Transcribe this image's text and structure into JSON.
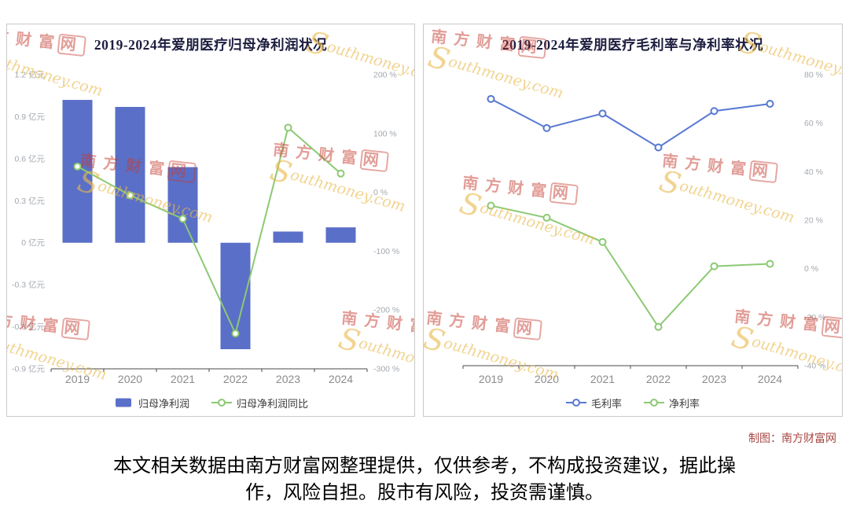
{
  "page": {
    "credit": "制图：南方财富网",
    "disclaimer": "本文相关数据由南方财富网整理提供，仅供参考，不构成投资建议，据此操作，风险自担。股市有风险，投资需谨慎。"
  },
  "watermark": {
    "cn": "南方财富网",
    "en_s": "S",
    "en_rest": "outhmoney.com"
  },
  "colors": {
    "bar_blue": "#5a6fc7",
    "line_green": "#8cc973",
    "line_blue": "#5778d2"
  },
  "chart_data": [
    {
      "type": "bar",
      "title": "2019-2024年爱朋医疗归母净利润状况",
      "categories": [
        "2019",
        "2020",
        "2021",
        "2022",
        "2023",
        "2024"
      ],
      "axes": {
        "left": {
          "min": -0.9,
          "max": 1.2,
          "ticks": [
            "1.2 亿元",
            "0.9 亿元",
            "0.6 亿元",
            "0.3 亿元",
            "0 亿元",
            "-0.3 亿元",
            "-0.6 亿元",
            "-0.9 亿元"
          ]
        },
        "right": {
          "min": -300,
          "max": 200,
          "ticks": [
            "200 %",
            "100 %",
            "0 %",
            "-100 %",
            "-200 %",
            "-300 %"
          ]
        }
      },
      "series": [
        {
          "name": "归母净利润",
          "kind": "bar",
          "axis": "left",
          "unit": "亿元",
          "color": "#5a6fc7",
          "values": [
            1.02,
            0.97,
            0.54,
            -0.76,
            0.08,
            0.11
          ]
        },
        {
          "name": "归母净利润同比",
          "kind": "line",
          "axis": "right",
          "unit": "%",
          "color": "#8cc973",
          "values": [
            44,
            -5,
            -45,
            -240,
            110,
            32
          ]
        }
      ],
      "legend_position": "bottom",
      "grid": false
    },
    {
      "type": "line",
      "title": "2019-2024年爱朋医疗毛利率与净利率状况",
      "categories": [
        "2019",
        "2020",
        "2021",
        "2022",
        "2023",
        "2024"
      ],
      "axes": {
        "right": {
          "min": -40,
          "max": 80,
          "ticks": [
            "80 %",
            "60 %",
            "40 %",
            "20 %",
            "0 %",
            "-20 %",
            "-40 %"
          ]
        }
      },
      "series": [
        {
          "name": "毛利率",
          "kind": "line",
          "axis": "right",
          "unit": "%",
          "color": "#5778d2",
          "values": [
            70,
            58,
            64,
            50,
            65,
            68
          ]
        },
        {
          "name": "净利率",
          "kind": "line",
          "axis": "right",
          "unit": "%",
          "color": "#8cc973",
          "values": [
            26,
            21,
            11,
            -24,
            1,
            2
          ]
        }
      ],
      "legend_position": "bottom",
      "grid": false
    }
  ]
}
